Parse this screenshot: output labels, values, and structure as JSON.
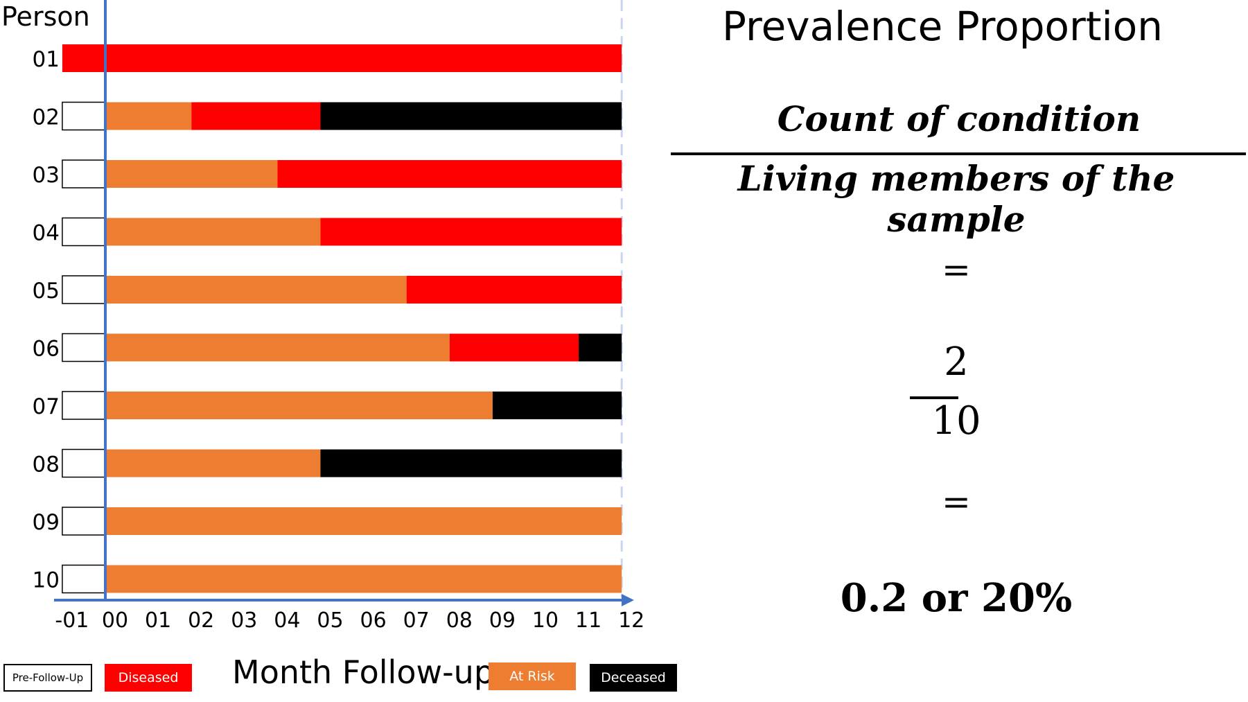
{
  "chart_data": {
    "type": "bar",
    "ylabel": "Person",
    "xlabel": "Month Follow-up",
    "x_ticks": [
      "-01",
      "00",
      "01",
      "02",
      "03",
      "04",
      "05",
      "06",
      "07",
      "08",
      "09",
      "10",
      "11",
      "12"
    ],
    "xlim": [
      -1,
      12
    ],
    "series_legend": [
      {
        "name": "Pre-Follow-Up",
        "color": "#ffffff"
      },
      {
        "name": "Diseased",
        "color": "#ff0000"
      },
      {
        "name": "At Risk",
        "color": "#ed7d31"
      },
      {
        "name": "Deceased",
        "color": "#000000"
      }
    ],
    "rows": [
      {
        "person": "01",
        "segments": [
          {
            "state": "Diseased",
            "start": -1,
            "end": 12
          }
        ]
      },
      {
        "person": "02",
        "segments": [
          {
            "state": "Pre-Follow-Up",
            "start": -1,
            "end": 0
          },
          {
            "state": "At Risk",
            "start": 0,
            "end": 2
          },
          {
            "state": "Diseased",
            "start": 2,
            "end": 5
          },
          {
            "state": "Deceased",
            "start": 5,
            "end": 12
          }
        ]
      },
      {
        "person": "03",
        "segments": [
          {
            "state": "Pre-Follow-Up",
            "start": -1,
            "end": 0
          },
          {
            "state": "At Risk",
            "start": 0,
            "end": 4
          },
          {
            "state": "Diseased",
            "start": 4,
            "end": 12
          }
        ]
      },
      {
        "person": "04",
        "segments": [
          {
            "state": "Pre-Follow-Up",
            "start": -1,
            "end": 0
          },
          {
            "state": "At Risk",
            "start": 0,
            "end": 5
          },
          {
            "state": "Diseased",
            "start": 5,
            "end": 12
          }
        ]
      },
      {
        "person": "05",
        "segments": [
          {
            "state": "Pre-Follow-Up",
            "start": -1,
            "end": 0
          },
          {
            "state": "At Risk",
            "start": 0,
            "end": 7
          },
          {
            "state": "Diseased",
            "start": 7,
            "end": 12
          }
        ]
      },
      {
        "person": "06",
        "segments": [
          {
            "state": "Pre-Follow-Up",
            "start": -1,
            "end": 0
          },
          {
            "state": "At Risk",
            "start": 0,
            "end": 8
          },
          {
            "state": "Diseased",
            "start": 8,
            "end": 11
          },
          {
            "state": "Deceased",
            "start": 11,
            "end": 12
          }
        ]
      },
      {
        "person": "07",
        "segments": [
          {
            "state": "Pre-Follow-Up",
            "start": -1,
            "end": 0
          },
          {
            "state": "At Risk",
            "start": 0,
            "end": 9
          },
          {
            "state": "Deceased",
            "start": 9,
            "end": 12
          }
        ]
      },
      {
        "person": "08",
        "segments": [
          {
            "state": "Pre-Follow-Up",
            "start": -1,
            "end": 0
          },
          {
            "state": "At Risk",
            "start": 0,
            "end": 5
          },
          {
            "state": "Deceased",
            "start": 5,
            "end": 12
          }
        ]
      },
      {
        "person": "09",
        "segments": [
          {
            "state": "Pre-Follow-Up",
            "start": -1,
            "end": 0
          },
          {
            "state": "At Risk",
            "start": 0,
            "end": 12
          }
        ]
      },
      {
        "person": "10",
        "segments": [
          {
            "state": "Pre-Follow-Up",
            "start": -1,
            "end": 0
          },
          {
            "state": "At Risk",
            "start": 0,
            "end": 12
          }
        ]
      }
    ]
  },
  "legend": {
    "pre_follow_up": "Pre-Follow-Up",
    "diseased": "Diseased",
    "at_risk": "At Risk",
    "deceased": "Deceased"
  },
  "formula": {
    "title": "Prevalence Proportion",
    "numerator": "Count of condition",
    "denominator": "Living members of the sample",
    "equals": "=",
    "frac_num": "2",
    "frac_den": "10",
    "result": "0.2 or 20%"
  },
  "colors": {
    "diseased": "#ff0000",
    "at_risk": "#ed7d31",
    "deceased": "#000000",
    "axis": "#4472c4"
  }
}
